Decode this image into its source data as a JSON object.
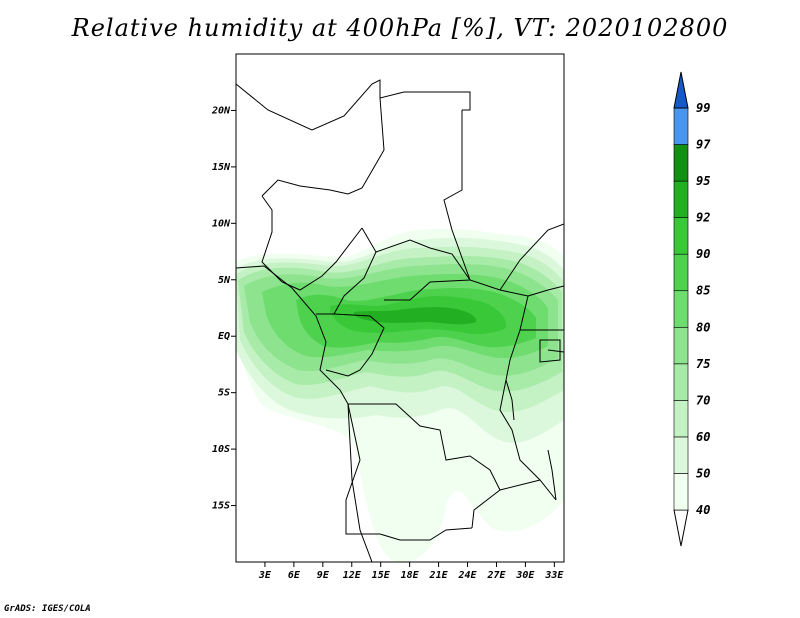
{
  "title": "Relative humidity at 400hPa [%], VT: 2020102800",
  "credit": "GrADS: IGES/COLA",
  "map": {
    "lon_range": [
      0,
      34
    ],
    "lat_range": [
      -20,
      25
    ],
    "lon_ticks": [
      {
        "value": 3,
        "label": "3E"
      },
      {
        "value": 6,
        "label": "6E"
      },
      {
        "value": 9,
        "label": "9E"
      },
      {
        "value": 12,
        "label": "12E"
      },
      {
        "value": 15,
        "label": "15E"
      },
      {
        "value": 18,
        "label": "18E"
      },
      {
        "value": 21,
        "label": "21E"
      },
      {
        "value": 24,
        "label": "24E"
      },
      {
        "value": 27,
        "label": "27E"
      },
      {
        "value": 30,
        "label": "30E"
      },
      {
        "value": 33,
        "label": "33E"
      }
    ],
    "lat_ticks": [
      {
        "value": 20,
        "label": "20N"
      },
      {
        "value": 15,
        "label": "15N"
      },
      {
        "value": 10,
        "label": "10N"
      },
      {
        "value": 5,
        "label": "5N"
      },
      {
        "value": 0,
        "label": "EQ"
      },
      {
        "value": -5,
        "label": "5S"
      },
      {
        "value": -10,
        "label": "10S"
      },
      {
        "value": -15,
        "label": "15S"
      }
    ]
  },
  "colorbar": {
    "levels": [
      "40",
      "50",
      "60",
      "70",
      "75",
      "80",
      "85",
      "90",
      "92",
      "95",
      "97",
      "99"
    ],
    "colors": [
      "#f0fff0",
      "#dcf8dc",
      "#c4f2c4",
      "#a8eaa8",
      "#8ee48e",
      "#6edc6e",
      "#4ed24e",
      "#38c838",
      "#22b022",
      "#139013",
      "#4a96ee",
      "#2a78e0",
      "#1558c8"
    ],
    "below_color": "#ffffff"
  },
  "colors": {
    "border": "#000000",
    "frame": "#000000"
  }
}
